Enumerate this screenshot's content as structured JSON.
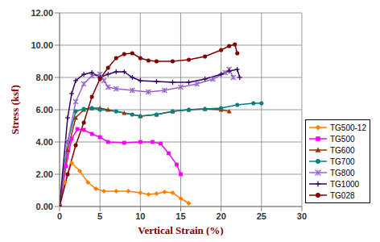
{
  "chart_data": {
    "type": "line",
    "x_label": "Vertical Strain (%)",
    "y_label": "Stress (ksf)",
    "xlim": [
      0,
      30
    ],
    "xticks": [
      0,
      5,
      10,
      15,
      20,
      25,
      30
    ],
    "ylim": [
      0,
      12
    ],
    "yticks": [
      {
        "value": 0,
        "label": "0.00"
      },
      {
        "value": 2,
        "label": "2.00"
      },
      {
        "value": 4,
        "label": "4.00"
      },
      {
        "value": 6,
        "label": "6.00"
      },
      {
        "value": 8,
        "label": "8.00"
      },
      {
        "value": 10,
        "label": "10.00"
      },
      {
        "value": 12,
        "label": "12.00"
      }
    ],
    "grid": true,
    "legend": "right",
    "series": [
      {
        "name": "TG500-12",
        "color": "#ff8000",
        "marker": "diamond",
        "x": [
          0,
          0.7,
          1.5,
          2.5,
          3.5,
          4.5,
          5.5,
          7,
          8.5,
          10,
          11,
          12,
          13,
          14,
          15,
          16
        ],
        "values": [
          0,
          1.5,
          2.7,
          2.2,
          1.5,
          1.1,
          0.95,
          0.95,
          0.95,
          0.85,
          0.75,
          0.8,
          0.9,
          0.85,
          0.5,
          0.2
        ]
      },
      {
        "name": "TG500",
        "color": "#ff00ff",
        "marker": "square",
        "x": [
          0,
          0.8,
          1.5,
          2.2,
          3,
          4,
          5,
          6,
          8,
          10,
          11.5,
          12.5,
          13.5,
          14.5,
          15
        ],
        "values": [
          0,
          2.5,
          4.2,
          4.8,
          4.75,
          4.5,
          4.3,
          4.0,
          3.95,
          4.0,
          4.0,
          3.9,
          3.3,
          2.6,
          2.0
        ]
      },
      {
        "name": "TG600",
        "color": "#993300",
        "marker": "triangle",
        "x": [
          0,
          1,
          2,
          3,
          4,
          5,
          6,
          8,
          10,
          12,
          14,
          16,
          18,
          20,
          21
        ],
        "values": [
          0,
          3.5,
          5.5,
          6.0,
          6.1,
          6.1,
          6.0,
          5.8,
          5.6,
          5.7,
          5.9,
          6.0,
          6.05,
          6.0,
          5.9
        ]
      },
      {
        "name": "TG700",
        "color": "#008080",
        "marker": "circle",
        "x": [
          0,
          1,
          2,
          3,
          4,
          5,
          7,
          9,
          10,
          12,
          14,
          16,
          18,
          20,
          22,
          24,
          25
        ],
        "values": [
          0,
          4.0,
          5.9,
          6.05,
          6.1,
          6.0,
          5.9,
          5.7,
          5.6,
          5.7,
          5.9,
          6.0,
          6.05,
          6.1,
          6.3,
          6.4,
          6.4
        ]
      },
      {
        "name": "TG800",
        "color": "#9966cc",
        "marker": "x",
        "x": [
          0,
          1,
          2,
          3,
          4,
          5,
          5.5,
          6,
          7,
          9,
          11,
          13,
          15,
          17,
          19,
          20.5,
          21,
          21.5
        ],
        "values": [
          0,
          4.0,
          6.5,
          7.6,
          8.1,
          8.2,
          7.8,
          7.4,
          7.3,
          7.2,
          7.1,
          7.2,
          7.4,
          7.6,
          7.9,
          8.3,
          8.5,
          8.0
        ]
      },
      {
        "name": "TG1000",
        "color": "#330066",
        "marker": "plus",
        "x": [
          0,
          1,
          1.5,
          2,
          3,
          4,
          5,
          6,
          7,
          8,
          9,
          10,
          12,
          14,
          16,
          18,
          20,
          21,
          22,
          22.3
        ],
        "values": [
          0,
          5.5,
          7.0,
          7.8,
          8.2,
          8.3,
          8.0,
          8.2,
          8.35,
          8.35,
          8.0,
          7.8,
          7.75,
          7.7,
          7.7,
          7.9,
          8.2,
          8.4,
          8.5,
          8.0
        ]
      },
      {
        "name": "TG028",
        "color": "#800000",
        "marker": "circle",
        "x": [
          0,
          1,
          2,
          3,
          4,
          5,
          6,
          7,
          8,
          9,
          10,
          11,
          12,
          14,
          16,
          18,
          20,
          21,
          21.7,
          22
        ],
        "values": [
          0,
          2.0,
          3.8,
          5.2,
          6.8,
          7.9,
          8.6,
          9.2,
          9.45,
          9.5,
          9.2,
          9.05,
          9.0,
          9.0,
          9.1,
          9.3,
          9.7,
          9.95,
          10.05,
          9.5
        ]
      }
    ]
  }
}
